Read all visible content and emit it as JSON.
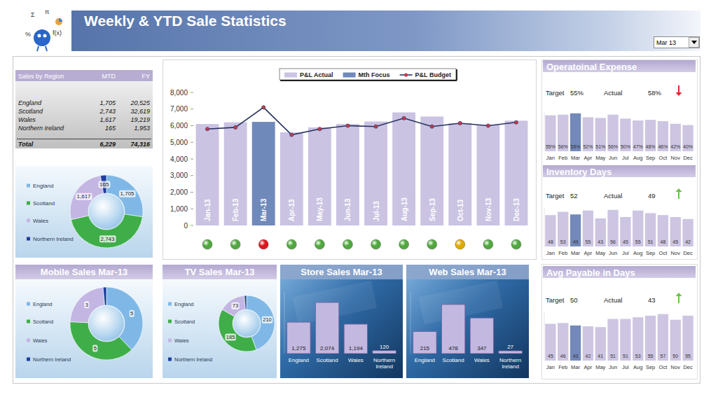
{
  "header": {
    "title": "Weekly & YTD Sale Statistics",
    "period": "Mar 13",
    "logo_symbols": [
      "Σ",
      "π",
      "%",
      "f(x)"
    ]
  },
  "table": {
    "header": [
      "Sales by Region",
      "MTD",
      "FY"
    ],
    "rows": [
      [
        "England",
        "1,705",
        "20,525"
      ],
      [
        "Scotland",
        "2,743",
        "32,619"
      ],
      [
        "Wales",
        "1,617",
        "19,219"
      ],
      [
        "Northern Ireland",
        "165",
        "1,953"
      ],
      [
        "Total",
        "6,229",
        "74,316"
      ]
    ]
  },
  "chart_data": [
    {
      "type": "pie",
      "categories": [
        "England",
        "Scotland",
        "Wales",
        "Northern Ireland"
      ],
      "values": [
        1705,
        2743,
        1617,
        165
      ],
      "value_labels": [
        "1,705",
        "2,743",
        "1,617",
        "165"
      ],
      "colors": [
        "#7fb8e6",
        "#3fae49",
        "#c3b6e3",
        "#1d3f9e"
      ],
      "data_labels": true,
      "legend": "left"
    },
    {
      "type": "bar",
      "categories": [
        "Jan-13",
        "Feb-13",
        "Mar-13",
        "Apr-13",
        "May-13",
        "Jun-13",
        "Jul-13",
        "Aug-13",
        "Sep-13",
        "Oct-13",
        "Nov-13",
        "Dec-13"
      ],
      "series": [
        {
          "name": "P&L Actual",
          "type": "bar",
          "color": "#cbc3e2",
          "values": [
            6100,
            6200,
            null,
            5600,
            5900,
            6100,
            6250,
            6800,
            6550,
            6150,
            6050,
            6300
          ]
        },
        {
          "name": "Mth Focus",
          "type": "bar",
          "color": "#7089bb",
          "values": [
            null,
            null,
            6229,
            null,
            null,
            null,
            null,
            null,
            null,
            null,
            null,
            null
          ]
        },
        {
          "name": "P&L Budget",
          "type": "line",
          "color": "#27325f",
          "marker": "circle",
          "values": [
            5800,
            5900,
            7100,
            5450,
            5800,
            6000,
            5950,
            6450,
            5950,
            6150,
            6000,
            6200
          ]
        }
      ],
      "ylim": [
        0,
        8000
      ],
      "yticks": [
        0,
        {
          "value": 1000,
          "label": "1,000"
        },
        {
          "value": 2000,
          "label": "2,000"
        },
        {
          "value": 3000,
          "label": "3,000"
        },
        {
          "value": 4000,
          "label": "4,000"
        },
        {
          "value": 5000,
          "label": "5,000"
        },
        {
          "value": 6000,
          "label": "6,000"
        },
        {
          "value": 7000,
          "label": "7,000"
        },
        {
          "value": 8000,
          "label": "8,000"
        }
      ],
      "legend": "top",
      "grid": false,
      "status_colors": [
        "#4fa83d",
        "#4fa83d",
        "#e0141e",
        "#4fa83d",
        "#4fa83d",
        "#4fa83d",
        "#4fa83d",
        "#4fa83d",
        "#4fa83d",
        "#e0a800",
        "#4fa83d",
        "#4fa83d"
      ]
    },
    {
      "type": "bar",
      "title": "Operatoinal Expense",
      "categories": [
        "Jan",
        "Feb",
        "Mar",
        "Apr",
        "May",
        "Jun",
        "Jul",
        "Aug",
        "Sep",
        "Oct",
        "Nov",
        "Dec"
      ],
      "values": [
        55,
        56,
        58,
        52,
        51,
        56,
        50,
        47,
        48,
        46,
        42,
        40
      ],
      "value_labels": [
        "55%",
        "56%",
        "58%",
        "52%",
        "51%",
        "56%",
        "50%",
        "47%",
        "48%",
        "46%",
        "42%",
        "40%"
      ],
      "colors": [
        "#cdc5e2",
        "#cdc5e2",
        "#7389ba",
        "#cdc5e2",
        "#cdc5e2",
        "#cdc5e2",
        "#cdc5e2",
        "#cdc5e2",
        "#cdc5e2",
        "#cdc5e2",
        "#cdc5e2",
        "#cdc5e2"
      ],
      "data_labels": true,
      "ylim": [
        0,
        60
      ],
      "tick_labels": "x",
      "kpis": [
        {
          "label": "Target",
          "value": 55,
          "value_label": "55%"
        },
        {
          "label": "Actual",
          "value": 58,
          "value_label": "58%"
        }
      ],
      "indicator": {
        "direction": "down",
        "color": "#e3262b"
      }
    },
    {
      "type": "bar",
      "title": "Inventory Days",
      "categories": [
        "Jan",
        "Feb",
        "Mar",
        "Apr",
        "May",
        "Jun",
        "Jul",
        "Aug",
        "Sep",
        "Oct",
        "Nov",
        "Dec"
      ],
      "values": [
        48,
        53,
        49,
        55,
        43,
        56,
        45,
        55,
        51,
        48,
        45,
        42
      ],
      "colors": [
        "#cdc5e2",
        "#cdc5e2",
        "#7389ba",
        "#cdc5e2",
        "#cdc5e2",
        "#cdc5e2",
        "#cdc5e2",
        "#cdc5e2",
        "#cdc5e2",
        "#cdc5e2",
        "#cdc5e2",
        "#cdc5e2"
      ],
      "data_labels": true,
      "ylim": [
        0,
        60
      ],
      "tick_labels": "x",
      "kpis": [
        {
          "label": "Target",
          "value": 52
        },
        {
          "label": "Actual",
          "value": 49
        }
      ],
      "indicator": {
        "direction": "up",
        "color": "#6cc04a"
      }
    },
    {
      "type": "bar",
      "title": "Avg Payable in Days",
      "categories": [
        "Jan",
        "Feb",
        "Mar",
        "Apr",
        "May",
        "Jun",
        "Jul",
        "Aug",
        "Sep",
        "Oct",
        "Nov",
        "Dec"
      ],
      "values": [
        45,
        46,
        43,
        42,
        41,
        51,
        51,
        53,
        55,
        57,
        50,
        55
      ],
      "colors": [
        "#cdc5e2",
        "#cdc5e2",
        "#7389ba",
        "#cdc5e2",
        "#cdc5e2",
        "#cdc5e2",
        "#cdc5e2",
        "#cdc5e2",
        "#cdc5e2",
        "#cdc5e2",
        "#cdc5e2",
        "#cdc5e2"
      ],
      "data_labels": true,
      "ylim": [
        0,
        60
      ],
      "tick_labels": "x",
      "kpis": [
        {
          "label": "Target",
          "value": 50
        },
        {
          "label": "Actual",
          "value": 43
        }
      ],
      "indicator": {
        "direction": "up",
        "color": "#6cc04a"
      }
    },
    {
      "type": "pie",
      "title": "Mobile Sales Mar-13",
      "categories": [
        "England",
        "Scotland",
        "Wales",
        "Northern Ireland"
      ],
      "values": [
        5,
        5,
        3,
        0.2
      ],
      "value_labels": [
        "5",
        "5",
        "3",
        null
      ],
      "colors": [
        "#7fb8e6",
        "#3fae49",
        "#c3b6e3",
        "#1d3f9e"
      ],
      "data_labels": true,
      "legend": "left"
    },
    {
      "type": "pie",
      "title": "TV Sales Mar-13",
      "categories": [
        "England",
        "Scotland",
        "Wales",
        "Northern Ireland"
      ],
      "values": [
        210,
        185,
        73,
        6
      ],
      "value_labels": [
        "210",
        "185",
        "73",
        null
      ],
      "colors": [
        "#7fb8e6",
        "#3fae49",
        "#c3b6e3",
        "#1d3f9e"
      ],
      "data_labels": true,
      "legend": "left"
    },
    {
      "type": "bar",
      "title": "Store Sales Mar-13",
      "categories": [
        "England",
        "Scotland",
        "Wales",
        "Northern Ireland"
      ],
      "values": [
        1275,
        2074,
        1194,
        120
      ],
      "value_labels": [
        "1,275",
        "2,074",
        "1,194",
        "120"
      ],
      "color": "#c3b8e0",
      "data_labels": true,
      "ylim": [
        0,
        2500
      ],
      "tick_labels": "x"
    },
    {
      "type": "bar",
      "title": "Web Sales Mar-13",
      "categories": [
        "England",
        "Scotland",
        "Wales",
        "Northern Ireland"
      ],
      "values": [
        215,
        478,
        347,
        27
      ],
      "color": "#c3b8e0",
      "data_labels": true,
      "ylim": [
        0,
        600
      ],
      "tick_labels": "x"
    }
  ]
}
